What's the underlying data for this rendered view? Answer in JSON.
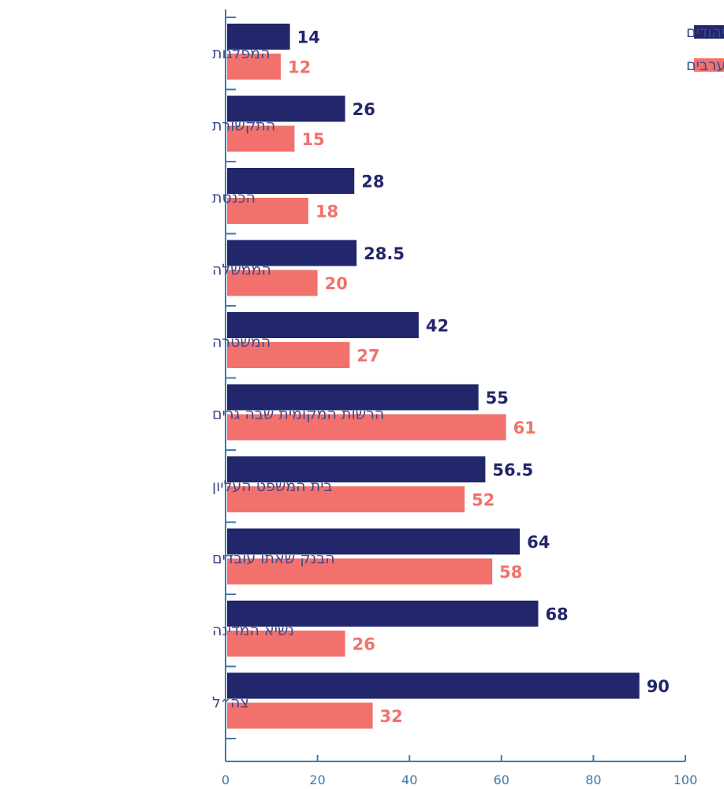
{
  "chart_data": {
    "type": "bar",
    "orientation": "horizontal",
    "categories": [
      "המפלגות",
      "התקשורת",
      "הכנסת",
      "הממשלה",
      "המשטרה",
      "הרשות המקומית שבה גרים",
      "בית המשפט העליון",
      "הבנק שאתו עובדים",
      "נשיא המדינה",
      "צה״ל"
    ],
    "series": [
      {
        "name": "יהודים",
        "color": "#22266b",
        "values": [
          14,
          26,
          28,
          28.5,
          42,
          55,
          56.5,
          64,
          68,
          90
        ]
      },
      {
        "name": "ערבים",
        "color": "#f2716c",
        "values": [
          12,
          15,
          18,
          20,
          27,
          61,
          52,
          58,
          26,
          32
        ]
      }
    ],
    "value_labels": {
      "יהודים": [
        "14",
        "26",
        "28",
        "28.5",
        "42",
        "55",
        "56.5",
        "64",
        "68",
        "90"
      ],
      "ערבים": [
        "12",
        "15",
        "18",
        "20",
        "27",
        "61",
        "52",
        "58",
        "26",
        "32"
      ]
    },
    "xlim": [
      0,
      100
    ],
    "xticks": [
      "0",
      "20",
      "40",
      "60",
      "80",
      "100"
    ],
    "title": "",
    "xlabel": "",
    "ylabel": "",
    "grid": false,
    "legend": "top-right",
    "axis_color": "#3a7bb0"
  }
}
